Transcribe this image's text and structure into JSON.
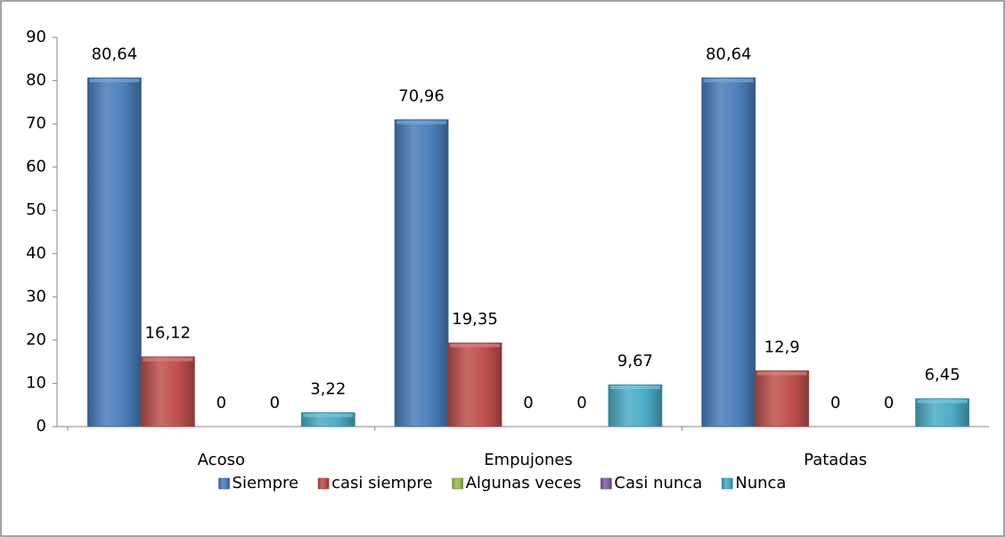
{
  "chart_data": {
    "type": "bar",
    "categories": [
      "Acoso",
      "Empujones",
      "Patadas"
    ],
    "series": [
      {
        "name": "Siempre",
        "color": "#4a7ebb",
        "values": [
          80.64,
          70.96,
          80.64
        ],
        "value_labels": [
          "80,64",
          "70,96",
          "80,64"
        ]
      },
      {
        "name": "casi siempre",
        "color": "#c0504d",
        "values": [
          16.12,
          19.35,
          12.9
        ],
        "value_labels": [
          "16,12",
          "19,35",
          "12,9"
        ]
      },
      {
        "name": "Algunas veces",
        "color": "#9bbb59",
        "values": [
          0,
          0,
          0
        ]
      },
      {
        "name": "Casi nunca",
        "color": "#8064a2",
        "values": [
          0,
          0,
          0
        ]
      },
      {
        "name": "Nunca",
        "color": "#4bacc6",
        "values": [
          3.22,
          9.67,
          6.45
        ],
        "value_labels": [
          "3,22",
          "9,67",
          "6,45"
        ]
      }
    ],
    "ylim": [
      0,
      90
    ],
    "yticks": [
      0,
      10,
      20,
      30,
      40,
      50,
      60,
      70,
      80,
      90
    ],
    "grid": false,
    "legend": "bottom"
  }
}
